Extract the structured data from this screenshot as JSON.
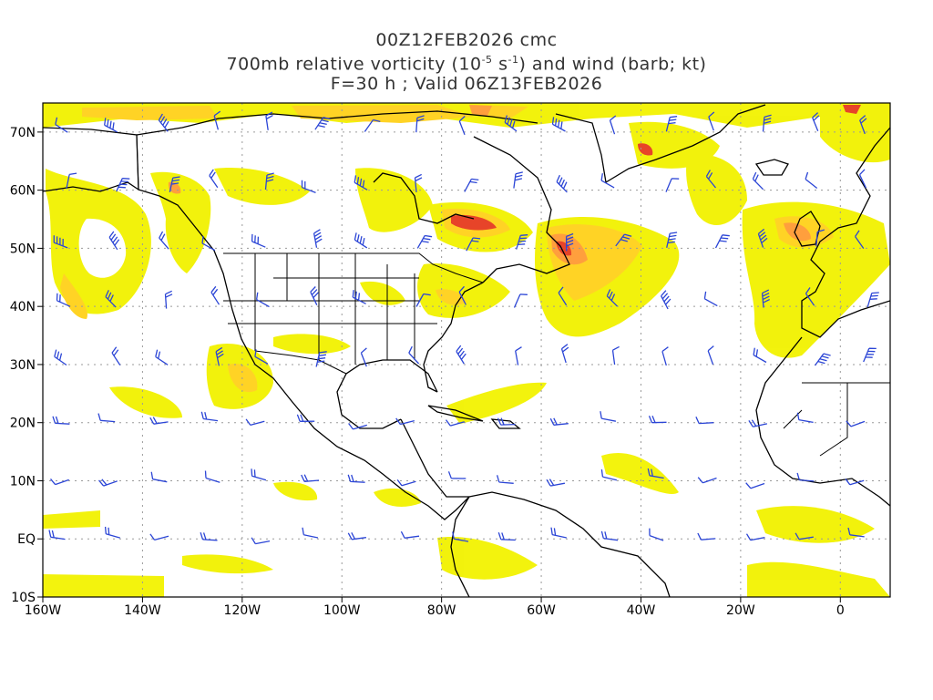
{
  "title": {
    "line1": "00Z12FEB2026 cmc",
    "line2_prefix": "700mb relative vorticity (10",
    "line2_sup1": "-5",
    "line2_mid": " s",
    "line2_sup2": "-1",
    "line2_suffix": ") and wind (barb; kt)",
    "line3": "F=30 h ; Valid 06Z13FEB2026"
  },
  "map": {
    "lon_range": [
      -160,
      10
    ],
    "lat_range": [
      -10,
      75
    ],
    "lon_ticks": [
      "160W",
      "140W",
      "120W",
      "100W",
      "80W",
      "60W",
      "40W",
      "20W",
      "0"
    ],
    "lat_ticks": [
      "70N",
      "60N",
      "50N",
      "40N",
      "30N",
      "20N",
      "10N",
      "EQ",
      "10S"
    ],
    "colors": {
      "vort_low": "#f2f200",
      "vort_mid": "#ffd11a",
      "vort_high": "#ff9a33",
      "vort_max": "#e63a1e",
      "coast": "#000000",
      "barb": "#2b45d6",
      "grid": "#9a9a9a"
    }
  }
}
